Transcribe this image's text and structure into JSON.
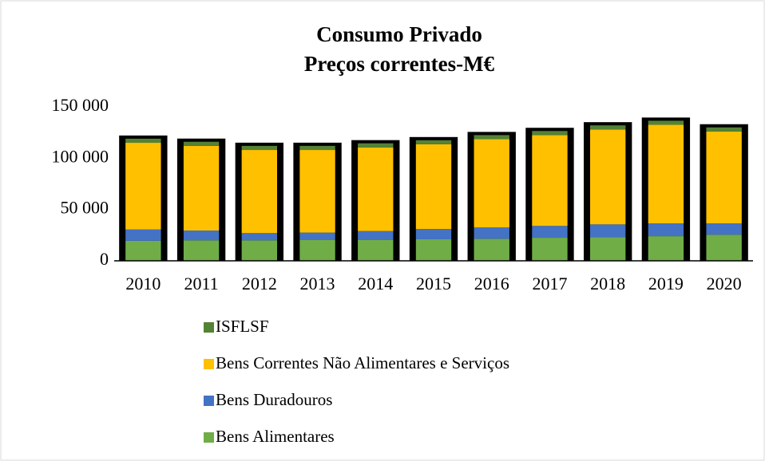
{
  "chart_data": {
    "type": "stacked_bar",
    "title": "Consumo Privado",
    "subtitle": "Preços correntes-M€",
    "categories": [
      "2010",
      "2011",
      "2012",
      "2013",
      "2014",
      "2015",
      "2016",
      "2017",
      "2018",
      "2019",
      "2020"
    ],
    "series": [
      {
        "name": "Bens Alimentares",
        "color": "#70ad47",
        "values": [
          19500,
          20000,
          20000,
          20500,
          20500,
          21000,
          21500,
          22500,
          23000,
          24000,
          25500
        ]
      },
      {
        "name": "Bens Duradouros",
        "color": "#4472c4",
        "values": [
          11000,
          9500,
          7000,
          7000,
          8500,
          10000,
          11000,
          11500,
          12500,
          12500,
          11000
        ]
      },
      {
        "name": "Bens Correntes Não Alimentares e Serviços",
        "color": "#ffc000",
        "values": [
          84500,
          82500,
          81000,
          80500,
          81500,
          82500,
          86000,
          88500,
          92500,
          96000,
          89500
        ]
      },
      {
        "name": "ISFLSF",
        "color": "#548235",
        "values": [
          4000,
          4000,
          4000,
          4000,
          4000,
          4000,
          4000,
          4000,
          4000,
          4000,
          4000
        ]
      }
    ],
    "ylim": [
      0,
      150000
    ],
    "yticks": [
      0,
      {
        "value": 50000,
        "label": "50 000"
      },
      {
        "value": 100000,
        "label": "100 000"
      },
      {
        "value": 150000,
        "label": "150 000"
      }
    ],
    "grid": false,
    "legend": "bottom"
  }
}
